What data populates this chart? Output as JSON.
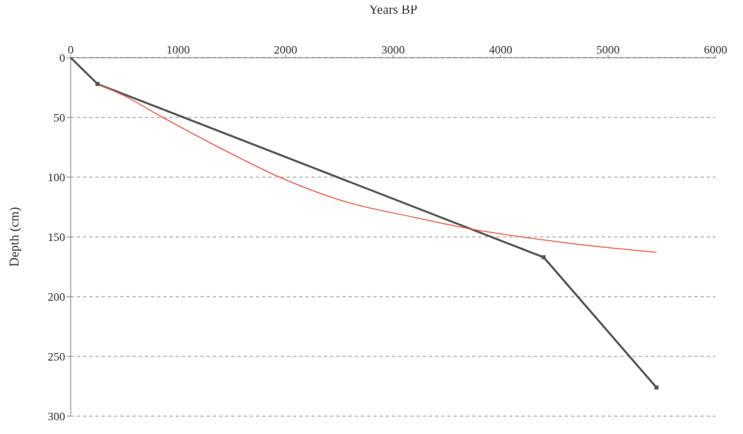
{
  "chart_data": {
    "type": "line",
    "xlabel": "Years BP",
    "ylabel": "Depth (cm)",
    "xlim": [
      0,
      6000
    ],
    "xticks": [
      0,
      1000,
      2000,
      3000,
      4000,
      5000,
      6000
    ],
    "ylim": [
      300,
      0
    ],
    "yticks": [
      0,
      50,
      100,
      150,
      200,
      250,
      300
    ],
    "grid": "y",
    "series": [
      {
        "color": "#555555",
        "marker": "square",
        "x": [
          0,
          250,
          4400,
          5450
        ],
        "values": [
          0,
          22,
          167,
          276
        ]
      },
      {
        "color": "#e8604c",
        "marker": "none",
        "x": [
          250,
          500,
          857,
          1400,
          1944,
          2500,
          3217,
          3700,
          4615,
          5450
        ],
        "values": [
          22,
          32,
          50,
          76,
          100,
          119,
          134,
          143,
          155,
          163
        ]
      }
    ]
  }
}
